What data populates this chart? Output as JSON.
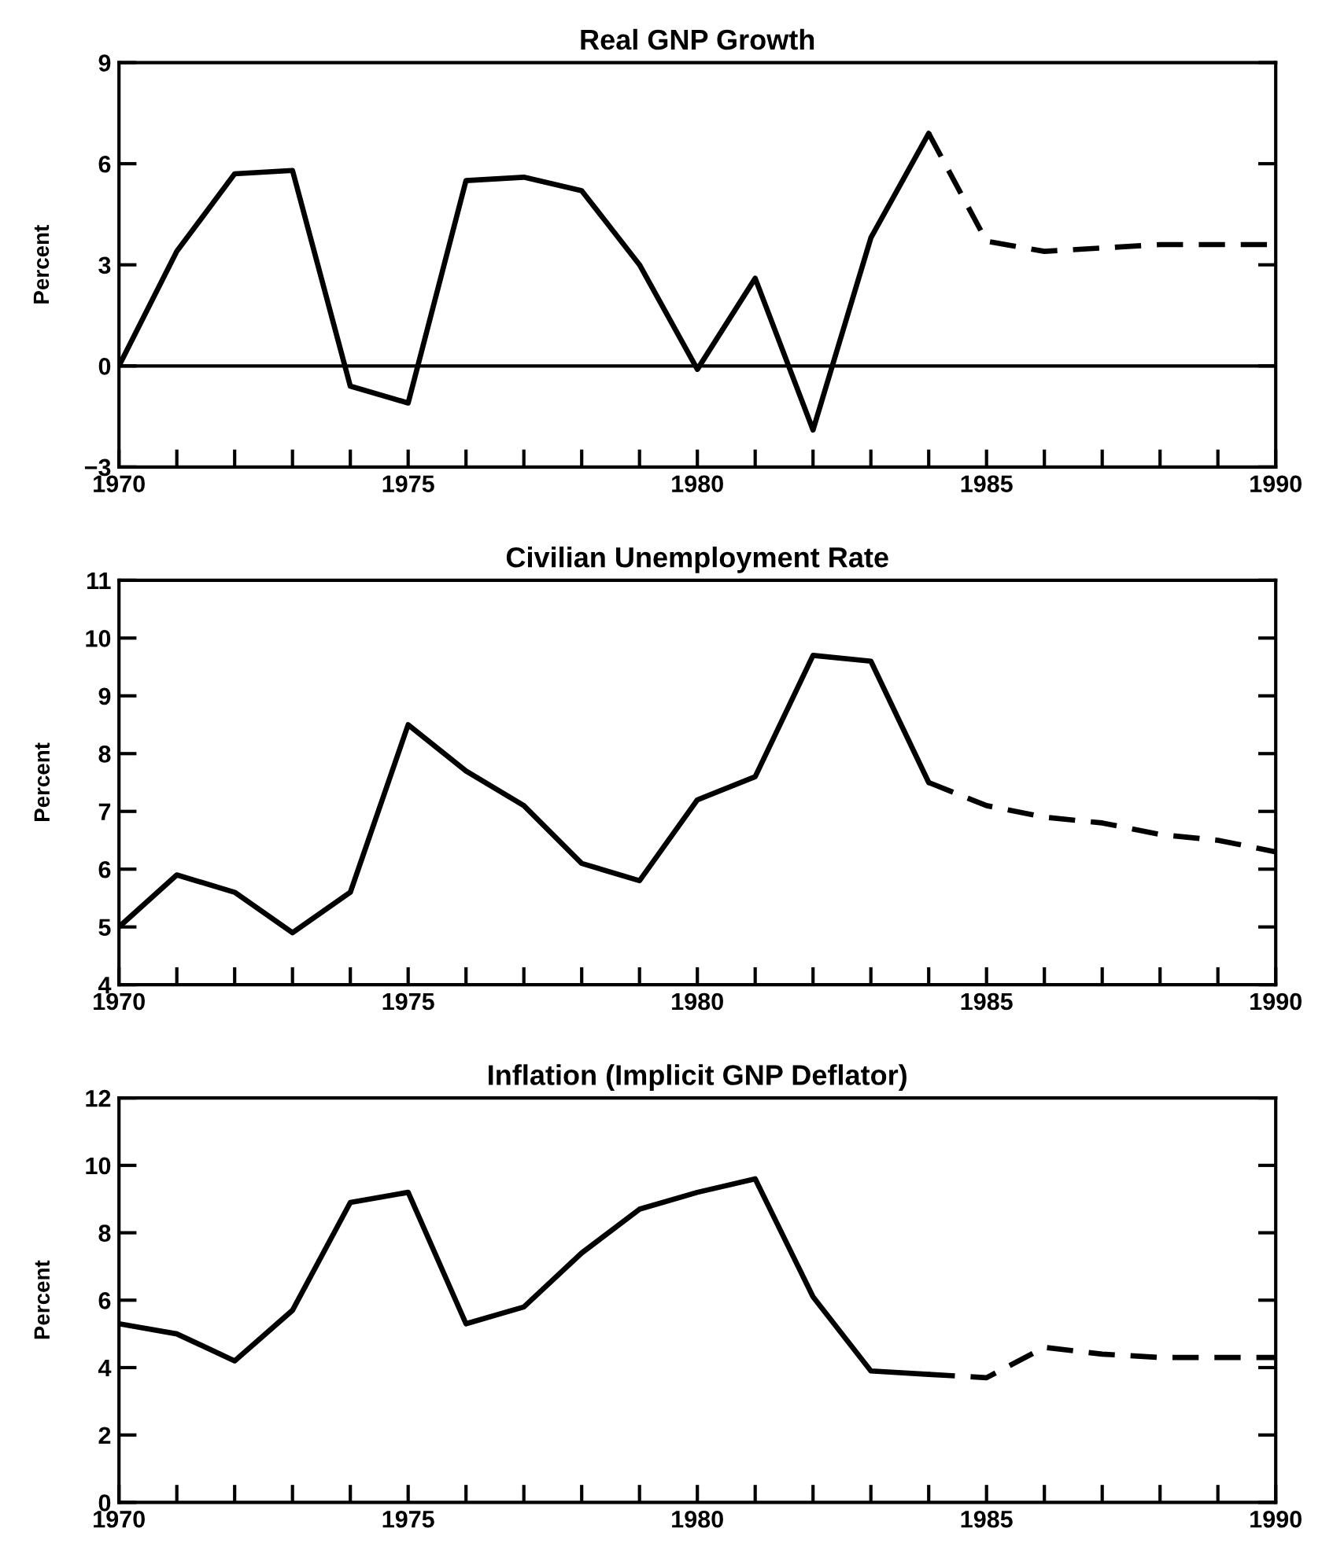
{
  "chart_data": [
    {
      "type": "line",
      "title": "Real GNP Growth",
      "ylabel": "Percent",
      "xlim": [
        1970,
        1990
      ],
      "ylim": [
        -3,
        9
      ],
      "xticks": [
        1970,
        {
          "value": 1971,
          "label": null
        },
        {
          "value": 1972,
          "label": null
        },
        {
          "value": 1973,
          "label": null
        },
        {
          "value": 1974,
          "label": null
        },
        1975,
        {
          "value": 1976,
          "label": null
        },
        {
          "value": 1977,
          "label": null
        },
        {
          "value": 1978,
          "label": null
        },
        {
          "value": 1979,
          "label": null
        },
        1980,
        {
          "value": 1981,
          "label": null
        },
        {
          "value": 1982,
          "label": null
        },
        {
          "value": 1983,
          "label": null
        },
        {
          "value": 1984,
          "label": null
        },
        1985,
        {
          "value": 1986,
          "label": null
        },
        {
          "value": 1987,
          "label": null
        },
        {
          "value": 1988,
          "label": null
        },
        {
          "value": 1989,
          "label": null
        },
        1990
      ],
      "yticks": [
        -3,
        0,
        3,
        6,
        9
      ],
      "grid": false,
      "legend": false,
      "ref_lines": [
        {
          "axis": "y",
          "value": 0,
          "color": "#000000",
          "line_style": "solid"
        }
      ],
      "series": [
        {
          "color": "#000000",
          "line_style": "solid",
          "x": [
            1970,
            1971,
            1972,
            1973,
            1974,
            1975,
            1976,
            1977,
            1978,
            1979,
            1980,
            1981,
            1982,
            1983,
            1984
          ],
          "values": [
            0.0,
            3.4,
            5.7,
            5.8,
            -0.6,
            -1.1,
            5.5,
            5.6,
            5.2,
            3.0,
            -0.1,
            2.6,
            -1.9,
            3.8,
            6.9
          ]
        },
        {
          "color": "#000000",
          "line_style": "dashed",
          "x": [
            1984,
            1985,
            1986,
            1987,
            1988,
            1989,
            1990
          ],
          "values": [
            6.9,
            3.7,
            3.4,
            3.5,
            3.6,
            3.6,
            3.6
          ]
        }
      ]
    },
    {
      "type": "line",
      "title": "Civilian Unemployment Rate",
      "ylabel": "Percent",
      "xlim": [
        1970,
        1990
      ],
      "ylim": [
        4,
        11
      ],
      "xticks": [
        1970,
        {
          "value": 1971,
          "label": null
        },
        {
          "value": 1972,
          "label": null
        },
        {
          "value": 1973,
          "label": null
        },
        {
          "value": 1974,
          "label": null
        },
        1975,
        {
          "value": 1976,
          "label": null
        },
        {
          "value": 1977,
          "label": null
        },
        {
          "value": 1978,
          "label": null
        },
        {
          "value": 1979,
          "label": null
        },
        1980,
        {
          "value": 1981,
          "label": null
        },
        {
          "value": 1982,
          "label": null
        },
        {
          "value": 1983,
          "label": null
        },
        {
          "value": 1984,
          "label": null
        },
        1985,
        {
          "value": 1986,
          "label": null
        },
        {
          "value": 1987,
          "label": null
        },
        {
          "value": 1988,
          "label": null
        },
        {
          "value": 1989,
          "label": null
        },
        1990
      ],
      "yticks": [
        4,
        5,
        6,
        7,
        8,
        9,
        10,
        11
      ],
      "grid": false,
      "legend": false,
      "series": [
        {
          "color": "#000000",
          "line_style": "solid",
          "x": [
            1970,
            1971,
            1972,
            1973,
            1974,
            1975,
            1976,
            1977,
            1978,
            1979,
            1980,
            1981,
            1982,
            1983,
            1984
          ],
          "values": [
            5.0,
            5.9,
            5.6,
            4.9,
            5.6,
            8.5,
            7.7,
            7.1,
            6.1,
            5.8,
            7.2,
            7.6,
            9.7,
            9.6,
            7.5
          ]
        },
        {
          "color": "#000000",
          "line_style": "dashed",
          "x": [
            1984,
            1985,
            1986,
            1987,
            1988,
            1989,
            1990
          ],
          "values": [
            7.5,
            7.1,
            6.9,
            6.8,
            6.6,
            6.5,
            6.3
          ]
        }
      ]
    },
    {
      "type": "line",
      "title": "Inflation (Implicit GNP Deflator)",
      "ylabel": "Percent",
      "xlim": [
        1970,
        1990
      ],
      "ylim": [
        0,
        12
      ],
      "xticks": [
        1970,
        {
          "value": 1971,
          "label": null
        },
        {
          "value": 1972,
          "label": null
        },
        {
          "value": 1973,
          "label": null
        },
        {
          "value": 1974,
          "label": null
        },
        1975,
        {
          "value": 1976,
          "label": null
        },
        {
          "value": 1977,
          "label": null
        },
        {
          "value": 1978,
          "label": null
        },
        {
          "value": 1979,
          "label": null
        },
        1980,
        {
          "value": 1981,
          "label": null
        },
        {
          "value": 1982,
          "label": null
        },
        {
          "value": 1983,
          "label": null
        },
        {
          "value": 1984,
          "label": null
        },
        1985,
        {
          "value": 1986,
          "label": null
        },
        {
          "value": 1987,
          "label": null
        },
        {
          "value": 1988,
          "label": null
        },
        {
          "value": 1989,
          "label": null
        },
        1990
      ],
      "yticks": [
        0,
        2,
        4,
        6,
        8,
        10,
        12
      ],
      "grid": false,
      "legend": false,
      "series": [
        {
          "color": "#000000",
          "line_style": "solid",
          "x": [
            1970,
            1971,
            1972,
            1973,
            1974,
            1975,
            1976,
            1977,
            1978,
            1979,
            1980,
            1981,
            1982,
            1983,
            1984
          ],
          "values": [
            5.3,
            5.0,
            4.2,
            5.7,
            8.9,
            9.2,
            5.3,
            5.8,
            7.4,
            8.7,
            9.2,
            9.6,
            6.1,
            3.9,
            3.8
          ]
        },
        {
          "color": "#000000",
          "line_style": "dashed",
          "x": [
            1984,
            1985,
            1986,
            1987,
            1988,
            1989,
            1990
          ],
          "values": [
            3.8,
            3.7,
            4.6,
            4.4,
            4.3,
            4.3,
            4.3
          ]
        }
      ]
    }
  ]
}
